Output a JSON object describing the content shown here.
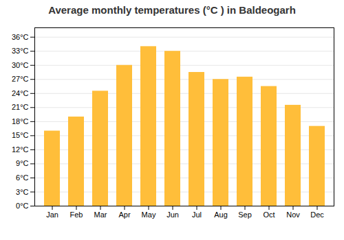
{
  "chart_data": {
    "type": "bar",
    "title": "Average monthly temperatures (°C ) in Baldeogarh",
    "categories": [
      "Jan",
      "Feb",
      "Mar",
      "Apr",
      "May",
      "Jun",
      "Jul",
      "Aug",
      "Sep",
      "Oct",
      "Nov",
      "Dec"
    ],
    "values": [
      16,
      19,
      24.5,
      30,
      34,
      33,
      28.5,
      27,
      27.5,
      25.5,
      21.5,
      17
    ],
    "color": "#FFBE3A",
    "ylim": [
      0,
      38
    ],
    "yticks": [
      {
        "value": 0,
        "label": "0°C"
      },
      {
        "value": 3,
        "label": "3°C"
      },
      {
        "value": 6,
        "label": "6°C"
      },
      {
        "value": 9,
        "label": "9°C"
      },
      {
        "value": 12,
        "label": "12°C"
      },
      {
        "value": 15,
        "label": "15°C"
      },
      {
        "value": 18,
        "label": "18°C"
      },
      {
        "value": 21,
        "label": "21°C"
      },
      {
        "value": 24,
        "label": "24°C"
      },
      {
        "value": 27,
        "label": "27°C"
      },
      {
        "value": 30,
        "label": "30°C"
      },
      {
        "value": 33,
        "label": "33°C"
      },
      {
        "value": 36,
        "label": "36°C"
      }
    ],
    "grid": true
  }
}
